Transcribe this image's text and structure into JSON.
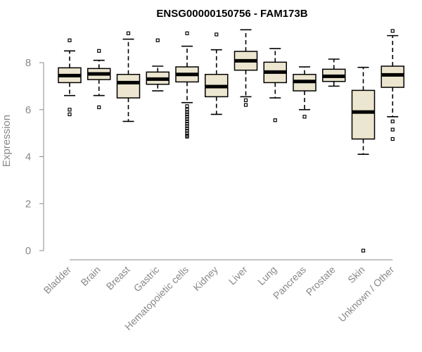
{
  "chart_data": {
    "type": "boxplot",
    "title": "ENSG00000150756 - FAM173B",
    "xlabel": "",
    "ylabel": "Expression",
    "ylim": [
      0,
      10
    ],
    "yticks": [
      0,
      2,
      4,
      6,
      8
    ],
    "colors": {
      "box_fill": "#ece6d0",
      "box_stroke": "#000000",
      "axis": "#888888"
    },
    "categories": [
      "Bladder",
      "Brain",
      "Breast",
      "Gastric",
      "Hematopoietic cells",
      "Kidney",
      "Liver",
      "Lung",
      "Pancreas",
      "Prostate",
      "Skin",
      "Unknown / Other"
    ],
    "boxes": [
      {
        "name": "Bladder",
        "lower_whisker": 6.6,
        "q1": 7.15,
        "median": 7.45,
        "q3": 7.78,
        "upper_whisker": 8.5,
        "outliers": [
          8.95,
          6.0,
          5.8
        ]
      },
      {
        "name": "Brain",
        "lower_whisker": 6.6,
        "q1": 7.28,
        "median": 7.52,
        "q3": 7.75,
        "upper_whisker": 8.1,
        "outliers": [
          8.5,
          6.1
        ]
      },
      {
        "name": "Breast",
        "lower_whisker": 5.5,
        "q1": 6.5,
        "median": 7.15,
        "q3": 7.5,
        "upper_whisker": 9.0,
        "outliers": [
          9.25
        ]
      },
      {
        "name": "Gastric",
        "lower_whisker": 6.8,
        "q1": 7.08,
        "median": 7.3,
        "q3": 7.6,
        "upper_whisker": 7.85,
        "outliers": [
          8.95
        ]
      },
      {
        "name": "Hematopoietic cells",
        "lower_whisker": 6.3,
        "q1": 7.18,
        "median": 7.5,
        "q3": 7.82,
        "upper_whisker": 8.7,
        "outliers": [
          9.25,
          6.15,
          6.0,
          5.9,
          5.8,
          5.7,
          5.6,
          5.5,
          5.4,
          5.3,
          5.2,
          5.1,
          5.0,
          4.9,
          4.85
        ]
      },
      {
        "name": "Kidney",
        "lower_whisker": 5.8,
        "q1": 6.55,
        "median": 6.98,
        "q3": 7.5,
        "upper_whisker": 8.55,
        "outliers": [
          9.2
        ]
      },
      {
        "name": "Liver",
        "lower_whisker": 6.55,
        "q1": 7.68,
        "median": 8.08,
        "q3": 8.48,
        "upper_whisker": 9.4,
        "outliers": [
          6.4,
          6.2
        ]
      },
      {
        "name": "Lung",
        "lower_whisker": 6.5,
        "q1": 7.15,
        "median": 7.6,
        "q3": 8.02,
        "upper_whisker": 8.6,
        "outliers": [
          5.55
        ]
      },
      {
        "name": "Pancreas",
        "lower_whisker": 6.0,
        "q1": 6.8,
        "median": 7.2,
        "q3": 7.5,
        "upper_whisker": 7.82,
        "outliers": [
          5.7
        ]
      },
      {
        "name": "Prostate",
        "lower_whisker": 7.0,
        "q1": 7.2,
        "median": 7.42,
        "q3": 7.72,
        "upper_whisker": 8.15,
        "outliers": []
      },
      {
        "name": "Skin",
        "lower_whisker": 4.1,
        "q1": 4.75,
        "median": 5.9,
        "q3": 6.82,
        "upper_whisker": 7.8,
        "outliers": [
          0.0
        ]
      },
      {
        "name": "Unknown / Other",
        "lower_whisker": 5.7,
        "q1": 6.95,
        "median": 7.48,
        "q3": 7.85,
        "upper_whisker": 9.15,
        "outliers": [
          9.35,
          5.5,
          5.15,
          4.75
        ]
      }
    ]
  }
}
